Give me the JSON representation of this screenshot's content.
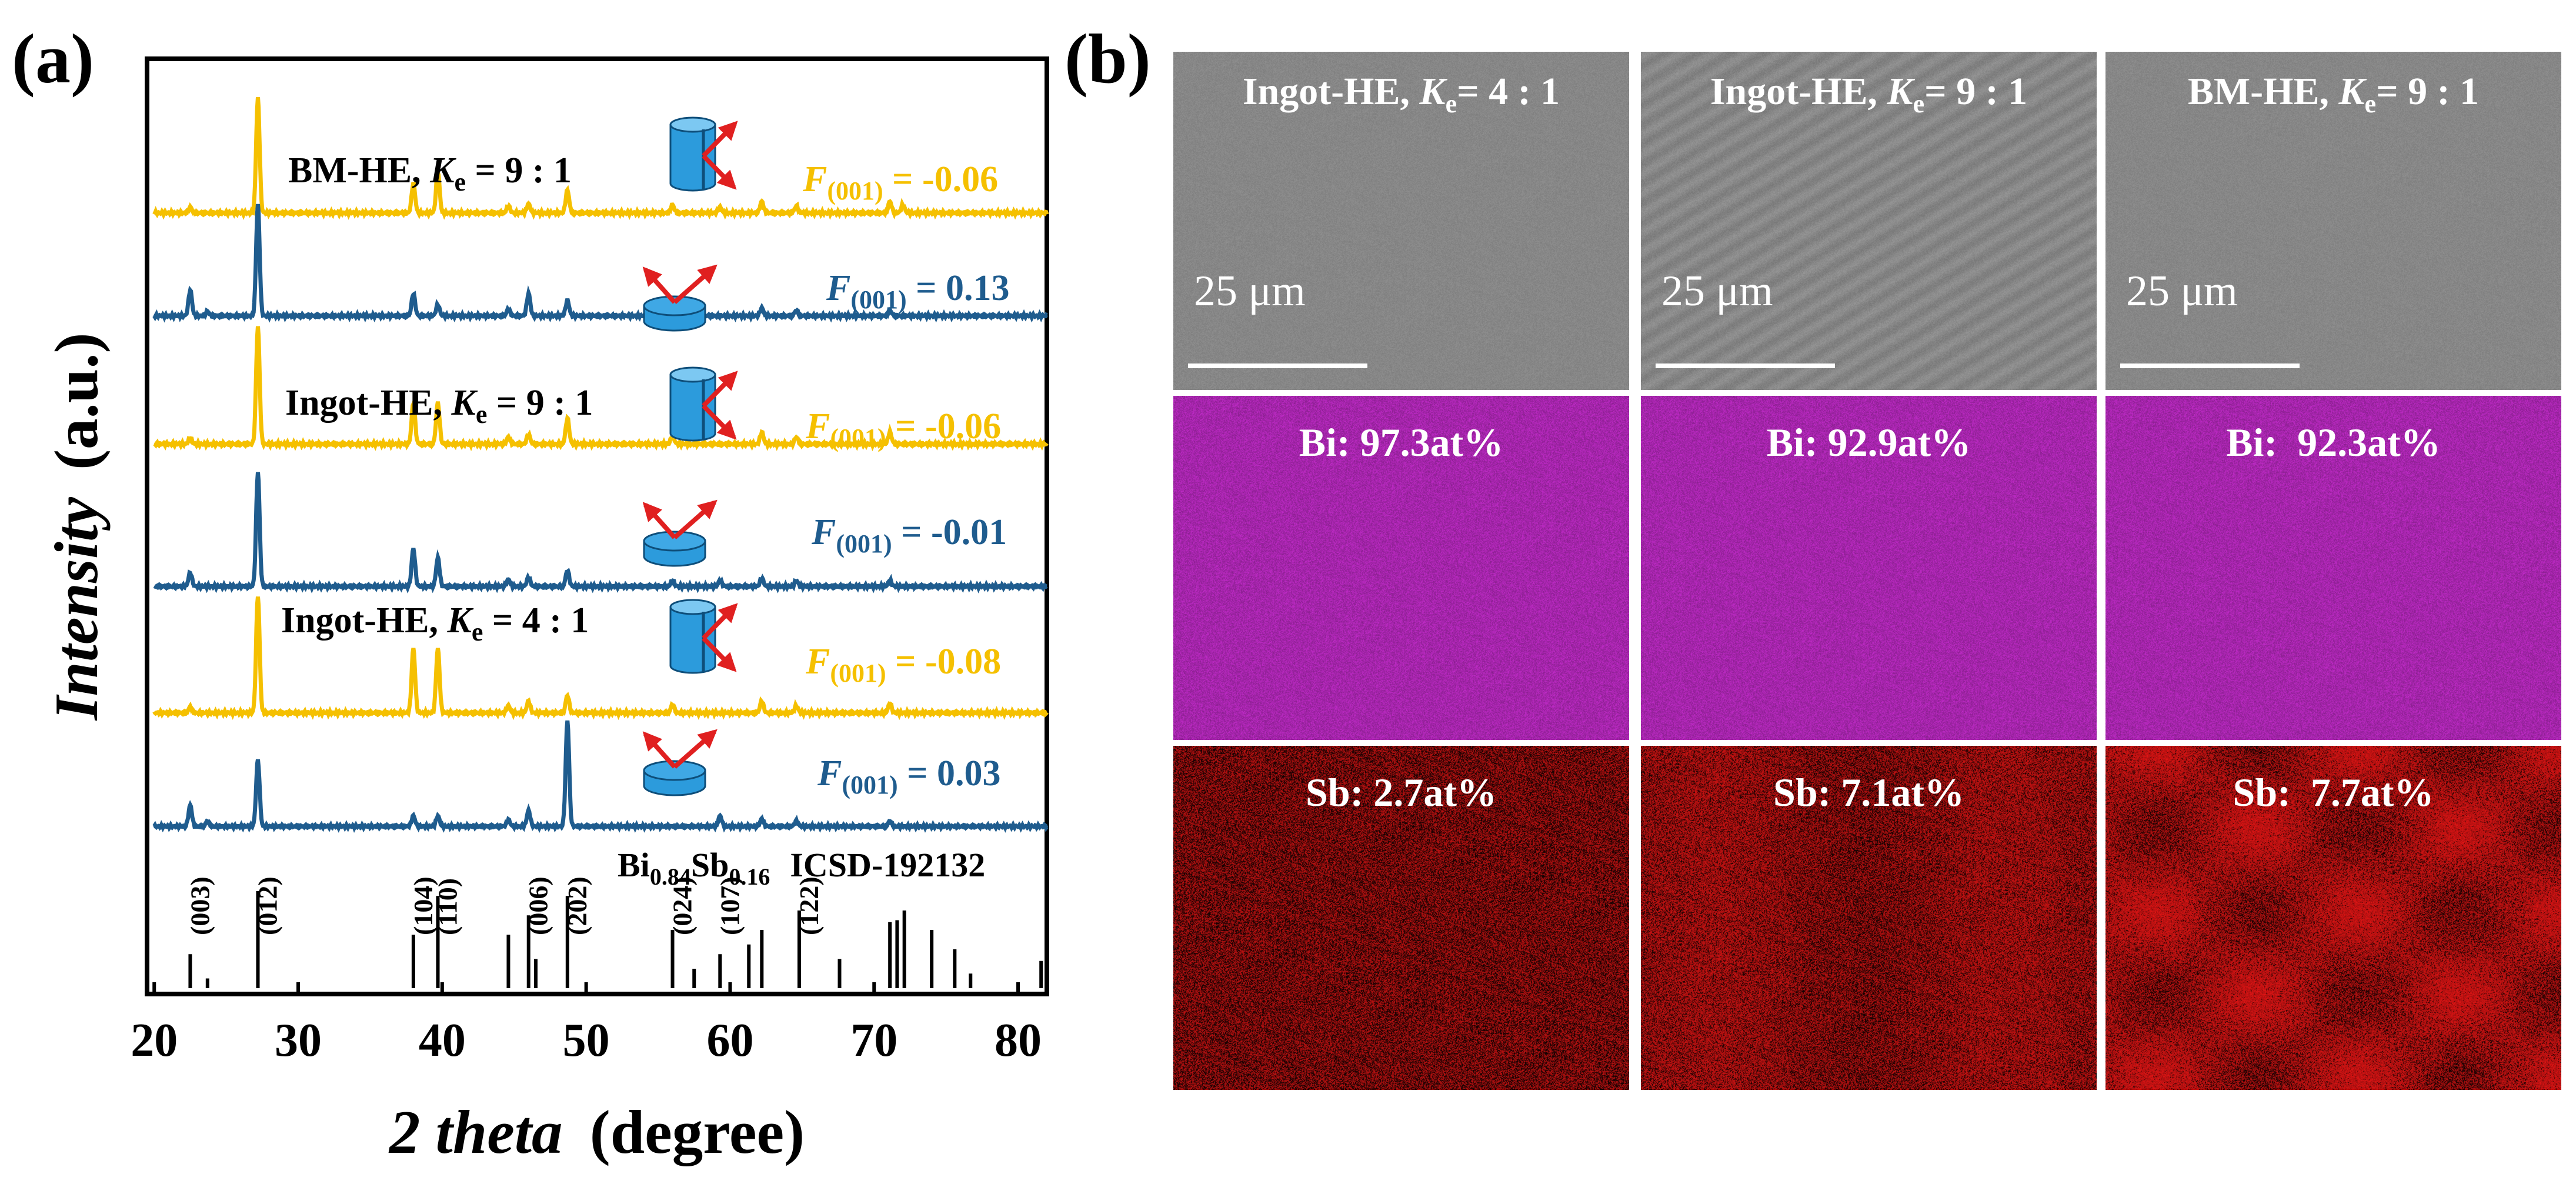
{
  "panel_a": {
    "label": "(a)",
    "y_axis_label": "Intensity",
    "y_axis_unit": "(a.u.)",
    "x_axis_label": "2 theta",
    "x_axis_unit": "(degree)",
    "x_ticks": [
      "20",
      "30",
      "40",
      "50",
      "60",
      "70",
      "80"
    ],
    "reference_label": {
      "formula_main": "Bi",
      "sub1": "0.84",
      "mid": "Sb",
      "sub2": "0.16",
      "icsd": "ICSD-192132"
    },
    "sample_labels": [
      {
        "prefix": "BM-HE, ",
        "k": "K",
        "k_sub": "e",
        "ratio": " =  9 : 1"
      },
      {
        "prefix": "Ingot-HE, ",
        "k": "K",
        "k_sub": "e",
        "ratio": " =  9 : 1"
      },
      {
        "prefix": "Ingot-HE, ",
        "k": "K",
        "k_sub": "e",
        "ratio": " =  4 : 1"
      }
    ],
    "f_factors": [
      {
        "f": "F",
        "sub": "(001)",
        "value": " = -0.06",
        "color": "#F5C000"
      },
      {
        "f": "F",
        "sub": "(001)",
        "value": " = 0.13",
        "color": "#1F5C8E"
      },
      {
        "f": "F",
        "sub": "(001)",
        "value": " = -0.06",
        "color": "#F5C000"
      },
      {
        "f": "F",
        "sub": "(001)",
        "value": " = -0.01",
        "color": "#1F5C8E"
      },
      {
        "f": "F",
        "sub": "(001)",
        "value": " = -0.08",
        "color": "#F5C000"
      },
      {
        "f": "F",
        "sub": "(001)",
        "value": " = 0.03",
        "color": "#1F5C8E"
      }
    ],
    "hkl_labels": [
      "(003)",
      "(012)",
      "(104)",
      "(110)",
      "(006)",
      "(202)",
      "(024)",
      "(107)",
      "(122)"
    ],
    "colors": {
      "yellow": "#F5C000",
      "blue": "#1F5C8E",
      "icon_blue": "#2C9BDC",
      "arrow_red": "#E02020"
    }
  },
  "panel_b": {
    "label": "(b)",
    "columns": [
      {
        "title_prefix": "Ingot-HE, ",
        "k": "K",
        "k_sub": "e",
        "ratio": "= 4 : 1",
        "scale": "25 μm",
        "bi": "Bi: 97.3at%",
        "sb": "Sb: 2.7at%"
      },
      {
        "title_prefix": "Ingot-HE, ",
        "k": "K",
        "k_sub": "e",
        "ratio": "= 9 : 1",
        "scale": "25 μm",
        "bi": "Bi: 92.9at%",
        "sb": "Sb: 7.1at%"
      },
      {
        "title_prefix": "BM-HE, ",
        "k": "K",
        "k_sub": "e",
        "ratio": "= 9 : 1",
        "scale": "25 μm",
        "bi": "Bi:  92.3at%",
        "sb": "Sb:  7.7at%"
      }
    ],
    "colors": {
      "sem_gray": "#8A8A8A",
      "bi_magenta": "#B23AB8",
      "sb_red": "#C81818"
    }
  },
  "chart_data": {
    "type": "line",
    "xlabel": "2 theta (degree)",
    "ylabel": "Intensity (a.u.)",
    "xlim": [
      19.5,
      82
    ],
    "x_ticks": [
      20,
      30,
      40,
      50,
      60,
      70,
      80
    ],
    "series": [
      {
        "name": "BM-HE, Ke = 9 : 1",
        "color": "#F5C000",
        "peaks": [
          [
            22.5,
            0.05
          ],
          [
            27.2,
            1.0
          ],
          [
            38.0,
            0.26
          ],
          [
            39.7,
            0.36
          ],
          [
            44.6,
            0.06
          ],
          [
            46.0,
            0.08
          ],
          [
            48.7,
            0.2
          ],
          [
            56.0,
            0.07
          ],
          [
            59.3,
            0.05
          ],
          [
            62.2,
            0.1
          ],
          [
            64.6,
            0.06
          ],
          [
            71.1,
            0.1
          ],
          [
            72.0,
            0.07
          ]
        ]
      },
      {
        "name": "",
        "color": "#1F5C8E",
        "peaks": [
          [
            22.5,
            0.23
          ],
          [
            23.7,
            0.04
          ],
          [
            27.2,
            1.0
          ],
          [
            38.0,
            0.2
          ],
          [
            39.7,
            0.1
          ],
          [
            44.6,
            0.06
          ],
          [
            46.0,
            0.2
          ],
          [
            48.7,
            0.14
          ],
          [
            62.2,
            0.07
          ],
          [
            64.6,
            0.05
          ],
          [
            71.1,
            0.05
          ]
        ]
      },
      {
        "name": "Ingot-HE, Ke = 9 : 1",
        "color": "#F5C000",
        "peaks": [
          [
            22.5,
            0.05
          ],
          [
            27.2,
            1.0
          ],
          [
            38.0,
            0.35
          ],
          [
            39.7,
            0.35
          ],
          [
            44.6,
            0.06
          ],
          [
            46.0,
            0.08
          ],
          [
            48.7,
            0.22
          ],
          [
            56.0,
            0.07
          ],
          [
            62.2,
            0.1
          ],
          [
            64.6,
            0.06
          ],
          [
            71.1,
            0.1
          ]
        ]
      },
      {
        "name": "",
        "color": "#1F5C8E",
        "peaks": [
          [
            22.5,
            0.12
          ],
          [
            27.2,
            1.0
          ],
          [
            38.0,
            0.33
          ],
          [
            39.7,
            0.25
          ],
          [
            44.6,
            0.06
          ],
          [
            46.0,
            0.08
          ],
          [
            48.7,
            0.14
          ],
          [
            56.0,
            0.05
          ],
          [
            59.3,
            0.05
          ],
          [
            62.2,
            0.07
          ],
          [
            64.6,
            0.05
          ],
          [
            71.1,
            0.05
          ]
        ]
      },
      {
        "name": "Ingot-HE, Ke = 4 : 1",
        "color": "#F5C000",
        "peaks": [
          [
            22.5,
            0.05
          ],
          [
            27.2,
            1.0
          ],
          [
            38.0,
            0.55
          ],
          [
            39.7,
            0.55
          ],
          [
            44.6,
            0.06
          ],
          [
            46.0,
            0.1
          ],
          [
            48.7,
            0.15
          ],
          [
            56.0,
            0.07
          ],
          [
            62.2,
            0.1
          ],
          [
            64.6,
            0.06
          ],
          [
            71.1,
            0.08
          ]
        ]
      },
      {
        "name": "",
        "color": "#1F5C8E",
        "peaks": [
          [
            22.5,
            0.2
          ],
          [
            23.7,
            0.05
          ],
          [
            27.2,
            0.63
          ],
          [
            38.0,
            0.1
          ],
          [
            39.7,
            0.1
          ],
          [
            44.6,
            0.06
          ],
          [
            46.0,
            0.15
          ],
          [
            48.7,
            1.0
          ],
          [
            59.3,
            0.1
          ],
          [
            62.2,
            0.07
          ],
          [
            64.6,
            0.05
          ],
          [
            71.1,
            0.05
          ]
        ]
      }
    ],
    "reference_sticks": [
      [
        22.5,
        0.35
      ],
      [
        23.7,
        0.1
      ],
      [
        27.2,
        1.0
      ],
      [
        38.0,
        0.55
      ],
      [
        39.7,
        0.95
      ],
      [
        44.6,
        0.55
      ],
      [
        46.0,
        0.75
      ],
      [
        46.5,
        0.3
      ],
      [
        48.7,
        0.95
      ],
      [
        56.0,
        0.6
      ],
      [
        57.5,
        0.2
      ],
      [
        59.3,
        0.35
      ],
      [
        61.3,
        0.45
      ],
      [
        62.2,
        0.6
      ],
      [
        64.8,
        0.8
      ],
      [
        67.6,
        0.3
      ],
      [
        71.1,
        0.68
      ],
      [
        71.6,
        0.7
      ],
      [
        72.1,
        0.8
      ],
      [
        74.0,
        0.6
      ],
      [
        75.6,
        0.4
      ],
      [
        76.7,
        0.15
      ],
      [
        81.6,
        0.28
      ]
    ],
    "hkl": [
      [
        22.5,
        "(003)"
      ],
      [
        27.2,
        "(012)"
      ],
      [
        38.0,
        "(104)"
      ],
      [
        39.7,
        "(110)"
      ],
      [
        46.0,
        "(006)"
      ],
      [
        48.7,
        "(202)"
      ],
      [
        56.0,
        "(024)"
      ],
      [
        59.3,
        "(107)"
      ],
      [
        64.8,
        "(122)"
      ]
    ]
  }
}
